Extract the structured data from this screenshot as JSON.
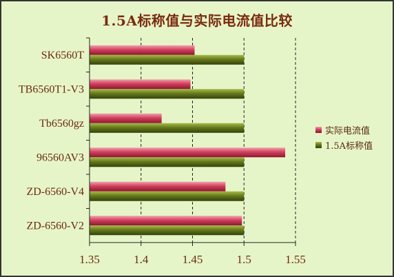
{
  "chart_data": {
    "type": "bar",
    "orientation": "horizontal",
    "title": "1.5A标称值与实际电流值比较",
    "categories": [
      "SK6560T",
      "TB6560T1-V3",
      "Tb6560gz",
      "96560AV3",
      "ZD-6560-V4",
      "ZD-6560-V2"
    ],
    "series": [
      {
        "name": "实际电流值",
        "values": [
          1.452,
          1.448,
          1.42,
          1.54,
          1.482,
          1.498
        ],
        "color": "#c8304a"
      },
      {
        "name": "1.5A标称值",
        "values": [
          1.5,
          1.5,
          1.5,
          1.5,
          1.5,
          1.5
        ],
        "color": "#5a6e16"
      }
    ],
    "xlim": [
      1.35,
      1.55
    ],
    "xticks": [
      "1.35",
      "1.4",
      "1.45",
      "1.5",
      "1.55"
    ],
    "grid": "vertical dashed",
    "legend_position": "right"
  }
}
